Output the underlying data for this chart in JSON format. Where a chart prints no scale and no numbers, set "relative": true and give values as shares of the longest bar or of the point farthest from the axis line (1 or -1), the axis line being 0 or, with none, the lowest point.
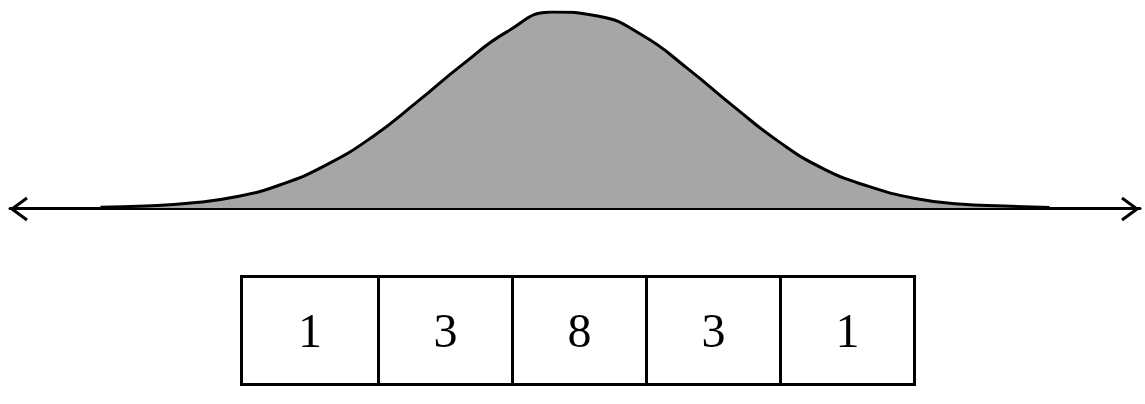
{
  "chart_data": {
    "type": "area",
    "relative": true,
    "categories": [
      null,
      null,
      null,
      null,
      null,
      null,
      null,
      null,
      null,
      null,
      null,
      null,
      null,
      null,
      null,
      null,
      null,
      null,
      null,
      null,
      null,
      null,
      null,
      null,
      null,
      null
    ],
    "values": [
      null,
      null,
      0.004,
      0.01,
      0.025,
      0.057,
      0.12,
      0.22,
      0.36,
      0.54,
      0.73,
      0.9,
      1,
      0.98,
      0.88,
      0.71,
      0.52,
      0.34,
      0.2,
      0.11,
      0.05,
      0.02,
      0.01,
      0.003,
      null,
      null
    ],
    "color": "#a6a6a6",
    "annotations": [
      "1",
      "3",
      "8",
      "3",
      "1"
    ]
  }
}
